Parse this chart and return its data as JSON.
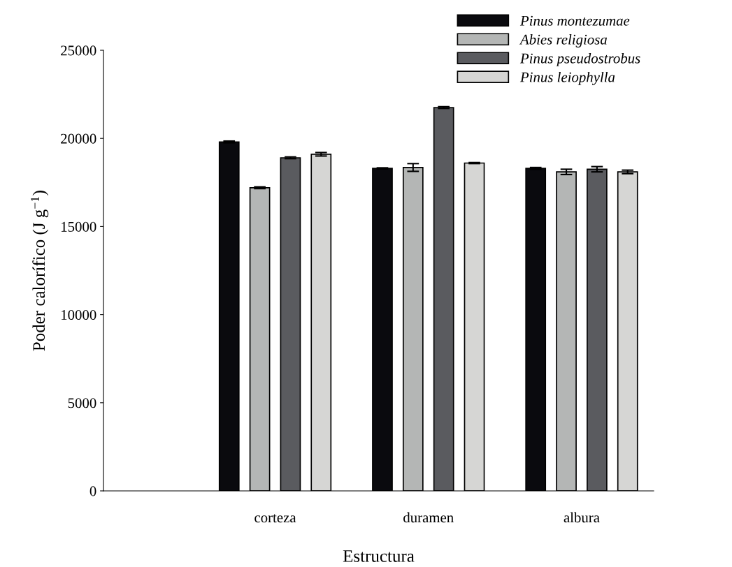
{
  "chart_data": {
    "type": "bar",
    "xlabel": "Estructura",
    "ylabel": "Poder calorífico (J g$^{−1}$)",
    "categories": [
      "corteza",
      "duramen",
      "albura"
    ],
    "series": [
      {
        "name": "Pinus montezumae",
        "color": "#0a0a0e",
        "values": [
          19800,
          18300,
          18300
        ],
        "errors": [
          50,
          30,
          50
        ]
      },
      {
        "name": "Abies religiosa",
        "color": "#b4b6b5",
        "values": [
          17200,
          18350,
          18100
        ],
        "errors": [
          50,
          220,
          150
        ]
      },
      {
        "name": "Pinus pseudostrobus",
        "color": "#5a5b5f",
        "values": [
          18900,
          21750,
          18250
        ],
        "errors": [
          50,
          50,
          150
        ]
      },
      {
        "name": "Pinus leiophylla",
        "color": "#d6d6d4",
        "values": [
          19100,
          18600,
          18100
        ],
        "errors": [
          100,
          30,
          100
        ]
      }
    ],
    "ylim": [
      0,
      25000
    ],
    "yticks": [
      0,
      5000,
      10000,
      15000,
      20000,
      25000
    ],
    "grid": false,
    "legend": "top right"
  }
}
